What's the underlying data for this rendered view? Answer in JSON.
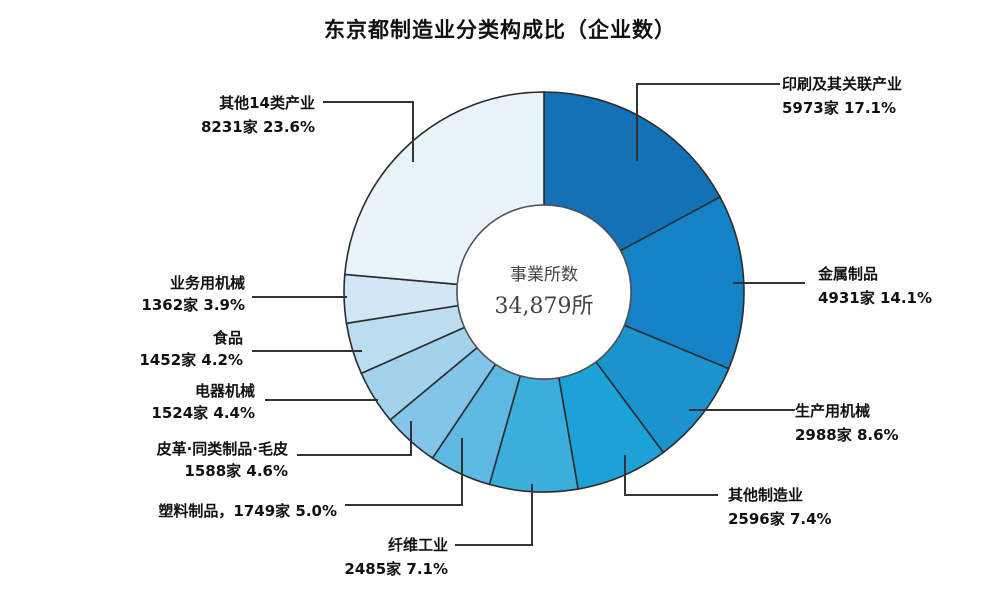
{
  "chart_data": {
    "type": "pie",
    "title": "东京都制造业分类构成比（企业数）",
    "center_label": "事業所数",
    "center_value": "34,879所",
    "slices": [
      {
        "name": "印刷及其关联产业",
        "label": "5973家 17.1%",
        "value": 5973,
        "percent": 17.1,
        "color": "#1272b5"
      },
      {
        "name": "金属制品",
        "label": "4931家 14.1%",
        "value": 4931,
        "percent": 14.1,
        "color": "#1482c4"
      },
      {
        "name": "生产用机械",
        "label": "2988家 8.6%",
        "value": 2988,
        "percent": 8.6,
        "color": "#1a93cf"
      },
      {
        "name": "其他制造业",
        "label": "2596家 7.4%",
        "value": 2596,
        "percent": 7.4,
        "color": "#1ca2d6"
      },
      {
        "name": "纤维工业",
        "label": "2485家 7.1%",
        "value": 2485,
        "percent": 7.1,
        "color": "#3aafdc"
      },
      {
        "name": "塑料制品",
        "label": "，1749家 5.0%",
        "value": 1749,
        "percent": 5.0,
        "color": "#5db9e2"
      },
      {
        "name": "皮革·同类制品·毛皮",
        "label": "1588家 4.6%",
        "value": 1588,
        "percent": 4.6,
        "color": "#82c5e8"
      },
      {
        "name": "电器机械",
        "label": "1524家 4.4%",
        "value": 1524,
        "percent": 4.4,
        "color": "#a3d2ec"
      },
      {
        "name": "食品",
        "label": "1452家 4.2%",
        "value": 1452,
        "percent": 4.2,
        "color": "#bcdcef"
      },
      {
        "name": "业务用机械",
        "label": "1362家 3.9%",
        "value": 1362,
        "percent": 3.9,
        "color": "#d2e7f4"
      },
      {
        "name": "其他14类产业",
        "label": "8231家 23.6%",
        "value": 8231,
        "percent": 23.6,
        "color": "#e9f3fa"
      }
    ]
  }
}
